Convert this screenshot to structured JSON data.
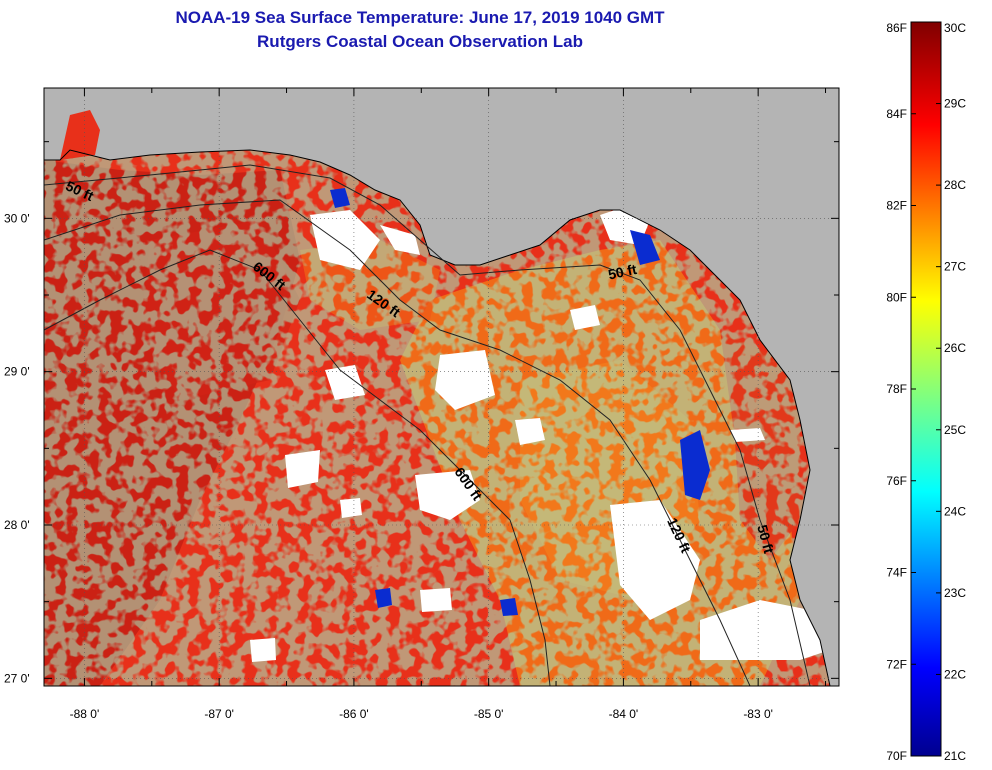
{
  "title": {
    "line1": "NOAA-19 Sea Surface Temperature:  June 17, 2019 1040 GMT",
    "line2": "Rutgers Coastal Ocean Observation Lab"
  },
  "map": {
    "lon_range": [
      -88.3,
      -82.4
    ],
    "lat_range": [
      26.95,
      30.85
    ],
    "lon_ticks": [
      {
        "value": -88,
        "label": "-88 0'"
      },
      {
        "value": -87,
        "label": "-87 0'"
      },
      {
        "value": -86,
        "label": "-86 0'"
      },
      {
        "value": -85,
        "label": "-85 0'"
      },
      {
        "value": -84,
        "label": "-84 0'"
      },
      {
        "value": -83,
        "label": "-83 0'"
      }
    ],
    "lat_ticks": [
      {
        "value": 30,
        "label": "30 0'"
      },
      {
        "value": 29,
        "label": "29 0'"
      },
      {
        "value": 28,
        "label": "28 0'"
      },
      {
        "value": 27,
        "label": "27 0'"
      }
    ],
    "contour_labels": [
      {
        "text": "50 ft",
        "lon": -88.05,
        "lat": 30.15,
        "angle": 25
      },
      {
        "text": "600 ft",
        "lon": -86.65,
        "lat": 29.6,
        "angle": 38
      },
      {
        "text": "120 ft",
        "lon": -85.8,
        "lat": 29.42,
        "angle": 35
      },
      {
        "text": "50 ft",
        "lon": -84.0,
        "lat": 29.62,
        "angle": -12
      },
      {
        "text": "600 ft",
        "lon": -85.18,
        "lat": 28.25,
        "angle": 55
      },
      {
        "text": "120 ft",
        "lon": -83.62,
        "lat": 27.92,
        "angle": 65
      },
      {
        "text": "50 ft",
        "lon": -82.98,
        "lat": 27.9,
        "angle": 75
      }
    ],
    "colors": {
      "land": "#b4b4b4",
      "cloud": "#ffffff",
      "warm_dark": "#c61e14",
      "warm": "#e8301a",
      "warm_orange": "#f06a18"
    }
  },
  "colorbar": {
    "f_labels": [
      "86F",
      "84F",
      "82F",
      "80F",
      "78F",
      "76F",
      "74F",
      "72F",
      "70F"
    ],
    "c_labels": [
      "30C",
      "29C",
      "28C",
      "27C",
      "26C",
      "25C",
      "24C",
      "23C",
      "22C",
      "21C"
    ],
    "range_c": [
      21,
      30
    ],
    "range_f": [
      70,
      86
    ],
    "colormap": "jet"
  }
}
